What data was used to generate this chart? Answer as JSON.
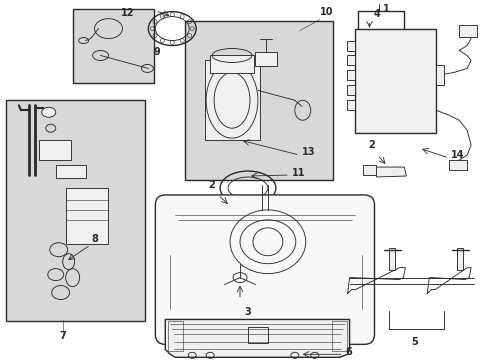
{
  "bg_color": "#ffffff",
  "line_color": "#2a2a2a",
  "gray_fill": "#d8d8d8",
  "light_fill": "#f0f0f0",
  "fig_width": 4.89,
  "fig_height": 3.6,
  "dpi": 100,
  "font_size": 7.0,
  "lw_thick": 1.0,
  "lw_med": 0.65,
  "lw_thin": 0.4
}
